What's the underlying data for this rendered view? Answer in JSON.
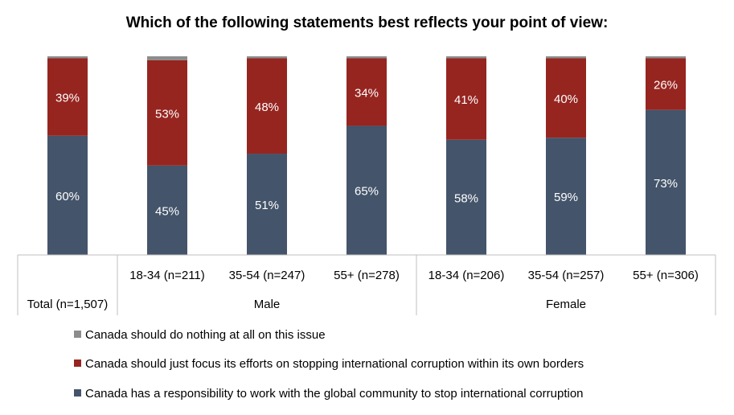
{
  "chart_data": {
    "type": "bar",
    "stacked": true,
    "title": "Which of the following statements best reflects your point of view:",
    "categories": [
      "Total (n=1,507)",
      "18-34 (n=211)",
      "35-54 (n=247)",
      "55+ (n=278)",
      "18-34 (n=206)",
      "35-54 (n=257)",
      "55+ (n=306)"
    ],
    "groups": [
      {
        "label": "Male",
        "categories": [
          1,
          2,
          3
        ]
      },
      {
        "label": "Female",
        "categories": [
          4,
          5,
          6
        ]
      }
    ],
    "ylim": [
      0,
      100
    ],
    "grid": false,
    "legend_position": "bottom",
    "series": [
      {
        "name": "Canada has a responsibility to work with the global community to stop international corruption",
        "color": "#44546A",
        "values": [
          60,
          45,
          51,
          65,
          58,
          59,
          73
        ],
        "labels": [
          "60%",
          "45%",
          "51%",
          "65%",
          "58%",
          "59%",
          "73%"
        ]
      },
      {
        "name": "Canada should just focus its efforts on stopping international corruption within its own borders",
        "color": "#962520",
        "values": [
          39,
          53,
          48,
          34,
          41,
          40,
          26
        ],
        "labels": [
          "39%",
          "53%",
          "48%",
          "34%",
          "41%",
          "40%",
          "26%"
        ]
      },
      {
        "name": "Canada should do nothing at all on this issue",
        "color": "#8C8C8C",
        "values": [
          1,
          2,
          1,
          1,
          1,
          1,
          1
        ],
        "labels": [
          "",
          "",
          "",
          "",
          "",
          "",
          ""
        ]
      }
    ]
  }
}
